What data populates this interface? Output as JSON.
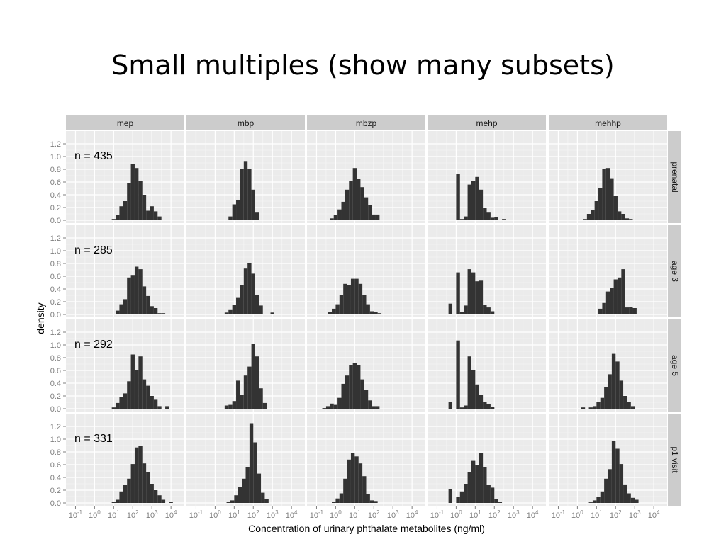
{
  "slide": {
    "title": "Small multiples (show many subsets)"
  },
  "chart_data": {
    "type": "bar",
    "subtype": "faceted histogram (small multiples)",
    "xlabel": "Concentration of urinary phthalate metabolites (ng/ml)",
    "ylabel": "density",
    "x_scale": "log10",
    "x_ticks": [
      {
        "base": "10",
        "exp": "-1"
      },
      {
        "base": "10",
        "exp": "0"
      },
      {
        "base": "10",
        "exp": "1"
      },
      {
        "base": "10",
        "exp": "2"
      },
      {
        "base": "10",
        "exp": "3"
      },
      {
        "base": "10",
        "exp": "4"
      }
    ],
    "xlim_log10": [
      -1.5,
      4.7
    ],
    "ylim": [
      0,
      1.35
    ],
    "y_ticks": [
      "0.0",
      "0.2",
      "0.4",
      "0.6",
      "0.8",
      "1.0",
      "1.2"
    ],
    "grid": true,
    "columns": [
      "mep",
      "mbp",
      "mbzp",
      "mehp",
      "mehhp"
    ],
    "rows": [
      {
        "label": "prenatal",
        "n_label": "n = 435"
      },
      {
        "label": "age 3",
        "n_label": "n = 285"
      },
      {
        "label": "age 5",
        "n_label": "n = 292"
      },
      {
        "label": "p1 visit",
        "n_label": "n = 331"
      }
    ],
    "bin_width_log10": 0.2,
    "panels": [
      [
        {
          "start_log10": 0.9,
          "values": [
            0.02,
            0.08,
            0.22,
            0.3,
            0.58,
            0.88,
            0.82,
            0.62,
            0.4,
            0.15,
            0.22,
            0.14,
            0.06
          ]
        },
        {
          "start_log10": 0.5,
          "values": [
            0.01,
            0.06,
            0.25,
            0.32,
            0.8,
            0.93,
            0.8,
            0.48,
            0.12
          ]
        },
        {
          "start_log10": -0.7,
          "values": [
            0.01,
            0.0,
            0.03,
            0.08,
            0.17,
            0.29,
            0.48,
            0.62,
            0.82,
            0.65,
            0.52,
            0.36,
            0.24,
            0.09,
            0.09
          ]
        },
        {
          "start_log10": -0.2,
          "values": [
            0.0,
            0.73,
            0.02,
            0.06,
            0.56,
            0.62,
            0.68,
            0.48,
            0.19,
            0.12,
            0.04,
            0.05,
            0.0,
            0.02
          ]
        },
        {
          "start_log10": 0.3,
          "values": [
            0.02,
            0.1,
            0.16,
            0.3,
            0.5,
            0.8,
            0.82,
            0.66,
            0.38,
            0.14,
            0.1,
            0.03,
            0.02
          ]
        }
      ],
      [
        {
          "start_log10": 1.1,
          "values": [
            0.06,
            0.16,
            0.24,
            0.58,
            0.62,
            0.75,
            0.71,
            0.44,
            0.29,
            0.13,
            0.1,
            0.02,
            0.02
          ]
        },
        {
          "start_log10": 0.5,
          "values": [
            0.03,
            0.08,
            0.15,
            0.26,
            0.46,
            0.72,
            0.8,
            0.64,
            0.3,
            0.14,
            0.0,
            0.0,
            0.03
          ]
        },
        {
          "start_log10": -0.6,
          "values": [
            0.01,
            0.04,
            0.09,
            0.16,
            0.3,
            0.48,
            0.46,
            0.56,
            0.56,
            0.48,
            0.3,
            0.16,
            0.05,
            0.04,
            0.02
          ]
        },
        {
          "start_log10": -0.4,
          "values": [
            0.17,
            0.0,
            0.66,
            0.04,
            0.14,
            0.71,
            0.66,
            0.52,
            0.53,
            0.15,
            0.11,
            0.05
          ]
        },
        {
          "start_log10": 0.5,
          "values": [
            0.01,
            0.0,
            0.0,
            0.09,
            0.18,
            0.36,
            0.42,
            0.55,
            0.58,
            0.71,
            0.11,
            0.12,
            0.1
          ]
        }
      ],
      [
        {
          "start_log10": 0.9,
          "values": [
            0.02,
            0.09,
            0.18,
            0.24,
            0.43,
            0.85,
            0.6,
            0.82,
            0.46,
            0.36,
            0.2,
            0.14,
            0.04,
            0.0,
            0.04
          ]
        },
        {
          "start_log10": 0.5,
          "values": [
            0.05,
            0.06,
            0.12,
            0.44,
            0.22,
            0.52,
            0.66,
            1.02,
            0.82,
            0.32,
            0.09
          ]
        },
        {
          "start_log10": -0.7,
          "values": [
            0.01,
            0.04,
            0.08,
            0.06,
            0.17,
            0.39,
            0.52,
            0.68,
            0.72,
            0.68,
            0.46,
            0.3,
            0.13,
            0.04,
            0.04
          ]
        },
        {
          "start_log10": -0.4,
          "values": [
            0.11,
            0.0,
            1.07,
            0.02,
            0.05,
            0.82,
            0.6,
            0.38,
            0.22,
            0.1,
            0.07,
            0.03
          ]
        },
        {
          "start_log10": 0.2,
          "values": [
            0.02,
            0.0,
            0.02,
            0.04,
            0.11,
            0.17,
            0.34,
            0.54,
            0.86,
            0.74,
            0.44,
            0.2,
            0.1,
            0.04
          ]
        }
      ],
      [
        {
          "start_log10": 0.9,
          "values": [
            0.02,
            0.05,
            0.18,
            0.28,
            0.38,
            0.61,
            0.87,
            0.9,
            0.62,
            0.48,
            0.3,
            0.2,
            0.12,
            0.05,
            0.0,
            0.02
          ]
        },
        {
          "start_log10": 0.6,
          "values": [
            0.02,
            0.04,
            0.12,
            0.25,
            0.38,
            0.56,
            1.25,
            0.95,
            0.46,
            0.16,
            0.06
          ]
        },
        {
          "start_log10": -0.2,
          "values": [
            0.02,
            0.07,
            0.15,
            0.38,
            0.68,
            0.78,
            0.73,
            0.62,
            0.42,
            0.14,
            0.04,
            0.03
          ]
        },
        {
          "start_log10": -0.4,
          "values": [
            0.22,
            0.0,
            0.1,
            0.18,
            0.3,
            0.48,
            0.66,
            0.59,
            0.78,
            0.56,
            0.28,
            0.24,
            0.06,
            0.02
          ]
        },
        {
          "start_log10": 0.6,
          "values": [
            0.01,
            0.04,
            0.1,
            0.18,
            0.38,
            0.53,
            0.97,
            0.85,
            0.61,
            0.29,
            0.15,
            0.08,
            0.05
          ]
        }
      ]
    ]
  }
}
